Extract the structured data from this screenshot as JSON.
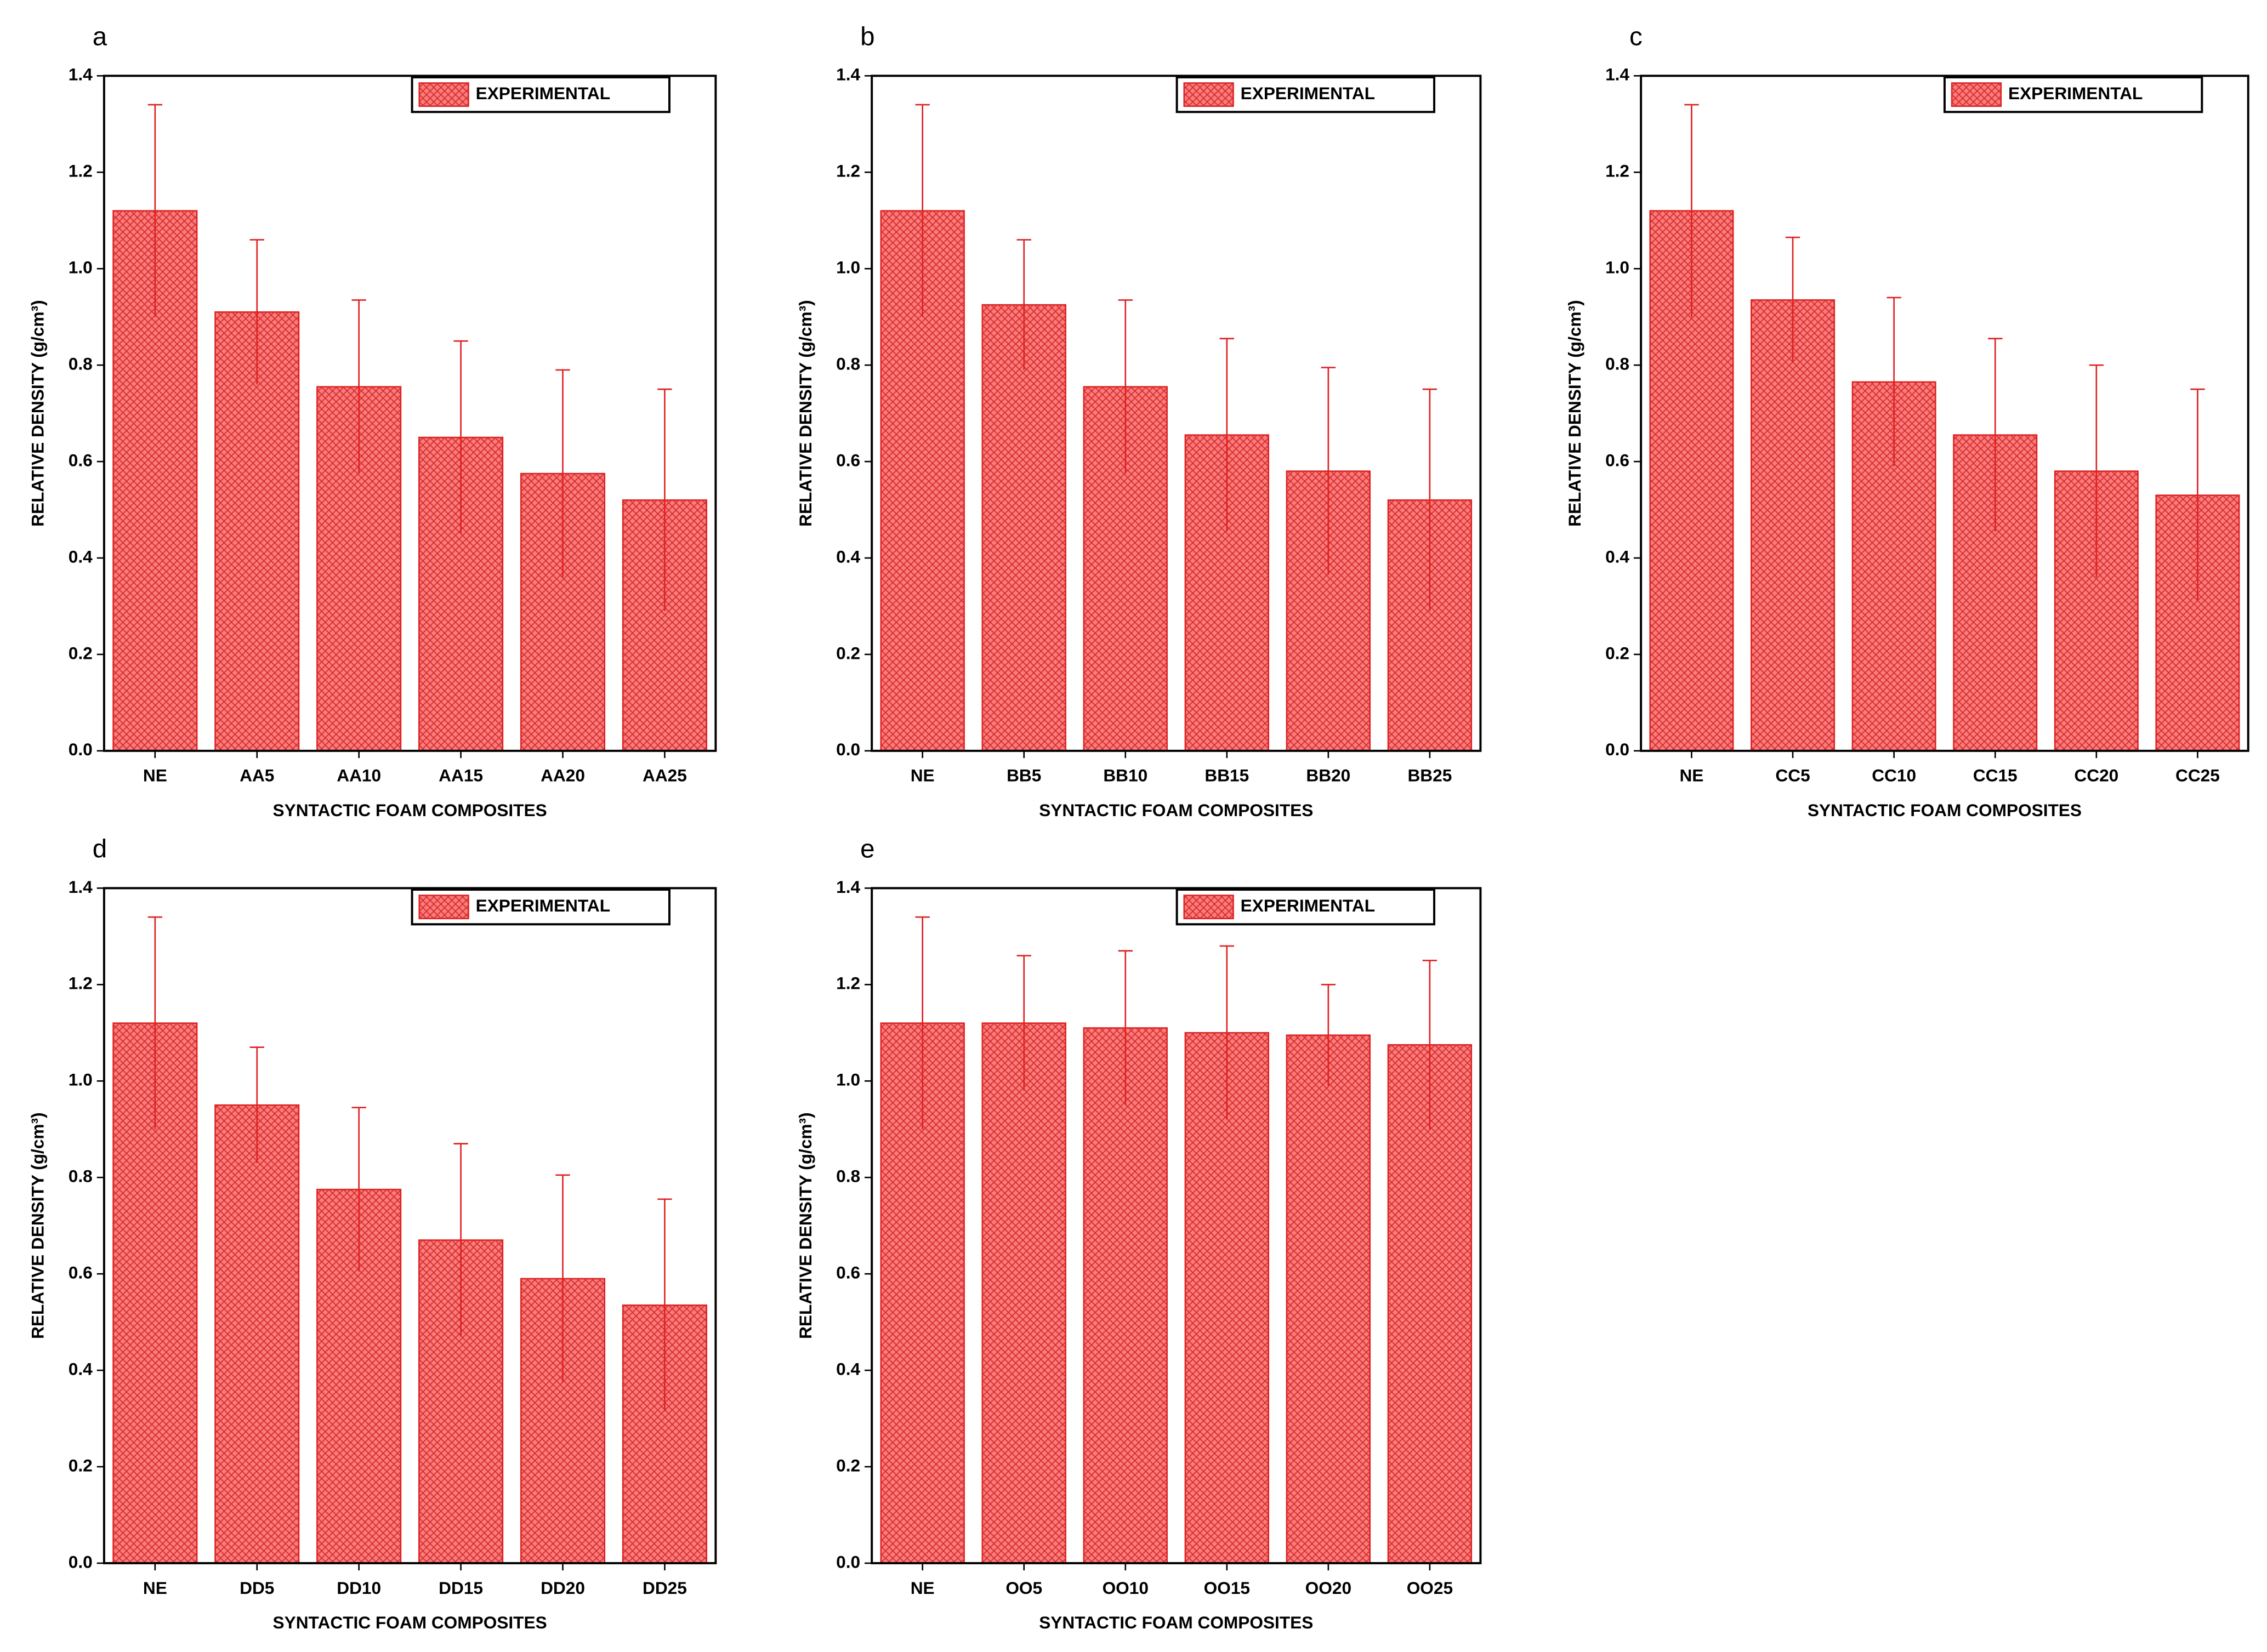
{
  "chart_data": [
    {
      "type": "bar",
      "panel_label": "a",
      "xlabel": "SYNTACTIC FOAM COMPOSITES",
      "ylabel": "RELATIVE DENSITY (g/cm³)",
      "categories": [
        "NE",
        "AA5",
        "AA10",
        "AA15",
        "AA20",
        "AA25"
      ],
      "series": [
        {
          "name": "EXPERIMENTAL",
          "color": "#ff7b7b",
          "values": [
            1.12,
            0.91,
            0.755,
            0.65,
            0.575,
            0.52
          ],
          "errors": [
            0.22,
            0.15,
            0.18,
            0.2,
            0.215,
            0.23
          ]
        }
      ],
      "ylim": [
        0,
        1.4
      ],
      "yticks": [
        {
          "value": 0,
          "label": "0.0"
        },
        0.2,
        0.4,
        0.6,
        0.8,
        {
          "value": 1,
          "label": "1.0"
        },
        1.2,
        1.4
      ],
      "legend": "upper right"
    },
    {
      "type": "bar",
      "panel_label": "b",
      "xlabel": "SYNTACTIC FOAM COMPOSITES",
      "ylabel": "RELATIVE DENSITY (g/cm³)",
      "categories": [
        "NE",
        "BB5",
        "BB10",
        "BB15",
        "BB20",
        "BB25"
      ],
      "series": [
        {
          "name": "EXPERIMENTAL",
          "color": "#ff7b7b",
          "values": [
            1.12,
            0.925,
            0.755,
            0.655,
            0.58,
            0.52
          ],
          "errors": [
            0.22,
            0.135,
            0.18,
            0.2,
            0.215,
            0.23
          ]
        }
      ],
      "ylim": [
        0,
        1.4
      ],
      "yticks": [
        {
          "value": 0,
          "label": "0.0"
        },
        0.2,
        0.4,
        0.6,
        0.8,
        {
          "value": 1,
          "label": "1.0"
        },
        1.2,
        1.4
      ],
      "legend": "upper right"
    },
    {
      "type": "bar",
      "panel_label": "c",
      "xlabel": "SYNTACTIC FOAM COMPOSITES",
      "ylabel": "RELATIVE DENSITY (g/cm³)",
      "categories": [
        "NE",
        "CC5",
        "CC10",
        "CC15",
        "CC20",
        "CC25"
      ],
      "series": [
        {
          "name": "EXPERIMENTAL",
          "color": "#ff7b7b",
          "values": [
            1.12,
            0.935,
            0.765,
            0.655,
            0.58,
            0.53
          ],
          "errors": [
            0.22,
            0.13,
            0.175,
            0.2,
            0.22,
            0.22
          ]
        }
      ],
      "ylim": [
        0,
        1.4
      ],
      "yticks": [
        {
          "value": 0,
          "label": "0.0"
        },
        0.2,
        0.4,
        0.6,
        0.8,
        {
          "value": 1,
          "label": "1.0"
        },
        1.2,
        1.4
      ],
      "legend": "upper right"
    },
    {
      "type": "bar",
      "panel_label": "d",
      "xlabel": "SYNTACTIC FOAM COMPOSITES",
      "ylabel": "RELATIVE DENSITY (g/cm³)",
      "categories": [
        "NE",
        "DD5",
        "DD10",
        "DD15",
        "DD20",
        "DD25"
      ],
      "series": [
        {
          "name": "EXPERIMENTAL",
          "color": "#ff7b7b",
          "values": [
            1.12,
            0.95,
            0.775,
            0.67,
            0.59,
            0.535
          ],
          "errors": [
            0.22,
            0.12,
            0.17,
            0.2,
            0.215,
            0.22
          ]
        }
      ],
      "ylim": [
        0,
        1.4
      ],
      "yticks": [
        {
          "value": 0,
          "label": "0.0"
        },
        0.2,
        0.4,
        0.6,
        0.8,
        {
          "value": 1,
          "label": "1.0"
        },
        1.2,
        1.4
      ],
      "legend": "upper right"
    },
    {
      "type": "bar",
      "panel_label": "e",
      "xlabel": "SYNTACTIC FOAM COMPOSITES",
      "ylabel": "RELATIVE DENSITY (g/cm³)",
      "categories": [
        "NE",
        "OO5",
        "OO10",
        "OO15",
        "OO20",
        "OO25"
      ],
      "series": [
        {
          "name": "EXPERIMENTAL",
          "color": "#ff7b7b",
          "values": [
            1.12,
            1.12,
            1.11,
            1.1,
            1.095,
            1.075
          ],
          "errors": [
            0.22,
            0.14,
            0.16,
            0.18,
            0.105,
            0.175
          ]
        }
      ],
      "ylim": [
        0,
        1.4
      ],
      "yticks": [
        {
          "value": 0,
          "label": "0.0"
        },
        0.2,
        0.4,
        0.6,
        0.8,
        {
          "value": 1,
          "label": "1.0"
        },
        1.2,
        1.4
      ],
      "legend": "upper right"
    }
  ]
}
